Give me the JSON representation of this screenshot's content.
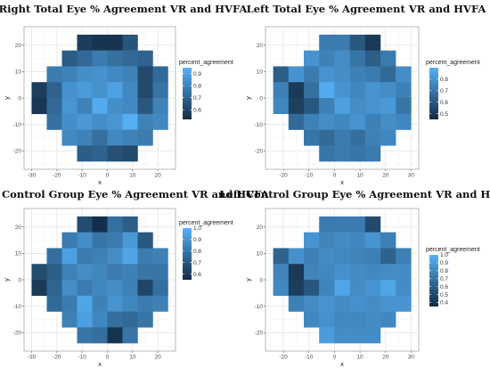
{
  "chart_data": [
    {
      "type": "heatmap",
      "title": "Right Total Eye % Agreement VR and HVFA",
      "xlabel": "x",
      "ylabel": "y",
      "xlim": [
        -33,
        27
      ],
      "ylim": [
        -27,
        27
      ],
      "xticks": [
        -30,
        -20,
        -10,
        0,
        10,
        20
      ],
      "yticks": [
        -20,
        -10,
        0,
        10,
        20
      ],
      "legend_title": "percent_agreement",
      "legend_range": [
        0.52,
        0.95
      ],
      "legend_ticks": [
        "0.9",
        "0.8",
        "0.7",
        "0.6"
      ],
      "legend_tick_values": [
        0.9,
        0.8,
        0.7,
        0.6
      ],
      "cell_w": 6,
      "cell_h": 6,
      "x_centers": [
        -27,
        -21,
        -15,
        -9,
        -3,
        3,
        9,
        15,
        21
      ],
      "y_centers": [
        21,
        15,
        9,
        3,
        -3,
        -9,
        -15,
        -21
      ],
      "values": [
        [
          null,
          null,
          null,
          0.58,
          0.55,
          0.55,
          0.65,
          null,
          null
        ],
        [
          null,
          null,
          0.68,
          0.72,
          0.78,
          0.74,
          0.72,
          0.7,
          null
        ],
        [
          null,
          0.78,
          0.8,
          0.84,
          0.85,
          0.82,
          0.8,
          0.62,
          0.72
        ],
        [
          0.58,
          0.7,
          0.85,
          0.88,
          0.85,
          0.9,
          0.82,
          0.62,
          0.75
        ],
        [
          0.56,
          0.72,
          0.86,
          0.8,
          0.93,
          0.84,
          0.82,
          0.66,
          0.8
        ],
        [
          null,
          0.74,
          0.84,
          0.87,
          0.84,
          0.86,
          0.94,
          0.8,
          0.82
        ],
        [
          null,
          null,
          0.82,
          0.8,
          0.74,
          0.82,
          0.8,
          0.78,
          null
        ],
        [
          null,
          null,
          null,
          0.68,
          0.7,
          0.64,
          0.62,
          null,
          null
        ]
      ]
    },
    {
      "type": "heatmap",
      "title": "Left Total Eye % Agreement VR and HVFA",
      "xlabel": "x",
      "ylabel": "y",
      "xlim": [
        -27,
        33
      ],
      "ylim": [
        -27,
        27
      ],
      "xticks": [
        -20,
        -10,
        0,
        10,
        20,
        30
      ],
      "yticks": [
        -20,
        -10,
        0,
        10,
        20
      ],
      "legend_title": "percent_agreement",
      "legend_range": [
        0.45,
        0.9
      ],
      "legend_ticks": [
        "0.8",
        "0.7",
        "0.6",
        "0.5"
      ],
      "legend_tick_values": [
        0.8,
        0.7,
        0.6,
        0.5
      ],
      "cell_w": 6,
      "cell_h": 6,
      "x_centers": [
        -21,
        -15,
        -9,
        -3,
        3,
        9,
        15,
        21,
        27
      ],
      "y_centers": [
        21,
        15,
        9,
        3,
        -3,
        -9,
        -15,
        -21
      ],
      "values": [
        [
          null,
          null,
          null,
          0.72,
          0.72,
          0.6,
          0.5,
          null,
          null
        ],
        [
          null,
          null,
          0.8,
          0.74,
          0.78,
          0.7,
          0.62,
          0.72,
          null
        ],
        [
          0.62,
          0.8,
          0.72,
          0.8,
          0.78,
          0.74,
          0.72,
          0.66,
          0.78
        ],
        [
          0.74,
          0.5,
          0.68,
          0.88,
          0.8,
          0.76,
          0.8,
          0.78,
          0.74
        ],
        [
          0.76,
          0.52,
          0.6,
          0.74,
          0.84,
          0.78,
          0.8,
          0.82,
          0.7
        ],
        [
          null,
          0.66,
          0.74,
          0.78,
          0.76,
          0.8,
          0.74,
          0.78,
          0.76
        ],
        [
          null,
          null,
          0.7,
          0.66,
          0.72,
          0.68,
          0.74,
          0.76,
          null
        ],
        [
          null,
          null,
          null,
          0.7,
          0.72,
          0.7,
          0.72,
          null,
          null
        ]
      ]
    },
    {
      "type": "heatmap",
      "title": "Right Control Group Eye % Agreement VR and HVFA",
      "xlabel": "x",
      "ylabel": "y",
      "xlim": [
        -33,
        27
      ],
      "ylim": [
        -27,
        27
      ],
      "xticks": [
        -30,
        -20,
        -10,
        0,
        10,
        20
      ],
      "yticks": [
        -20,
        -10,
        0,
        10,
        20
      ],
      "legend_title": "percent_agreement",
      "legend_range": [
        0.55,
        1.0
      ],
      "legend_ticks": [
        "1.0",
        "0.9",
        "0.8",
        "0.7",
        "0.6"
      ],
      "legend_tick_values": [
        1.0,
        0.9,
        0.8,
        0.7,
        0.6
      ],
      "cell_w": 6,
      "cell_h": 6,
      "x_centers": [
        -27,
        -21,
        -15,
        -9,
        -3,
        3,
        9,
        15,
        21
      ],
      "y_centers": [
        21,
        15,
        9,
        3,
        -3,
        -9,
        -15,
        -21
      ],
      "values": [
        [
          null,
          null,
          null,
          0.66,
          0.56,
          0.78,
          0.72,
          null,
          null
        ],
        [
          null,
          null,
          0.82,
          0.88,
          0.8,
          0.82,
          0.92,
          0.7,
          null
        ],
        [
          null,
          0.78,
          0.94,
          0.82,
          0.84,
          0.88,
          0.96,
          0.82,
          0.84
        ],
        [
          0.66,
          0.72,
          0.84,
          0.88,
          0.86,
          0.82,
          0.84,
          0.8,
          0.8
        ],
        [
          0.6,
          0.74,
          0.88,
          0.82,
          0.86,
          0.88,
          0.84,
          0.64,
          0.78
        ],
        [
          null,
          0.76,
          0.82,
          0.96,
          0.84,
          0.9,
          0.86,
          0.82,
          0.84
        ],
        [
          null,
          null,
          0.84,
          0.94,
          0.86,
          0.78,
          0.76,
          0.8,
          null
        ],
        [
          null,
          null,
          null,
          0.8,
          0.78,
          0.58,
          0.8,
          null,
          null
        ]
      ]
    },
    {
      "type": "heatmap",
      "title": "Left Control Group Eye % Agreement VR and HVFA",
      "xlabel": "x",
      "ylabel": "y",
      "xlim": [
        -27,
        33
      ],
      "ylim": [
        -27,
        27
      ],
      "xticks": [
        -20,
        -10,
        0,
        10,
        20,
        30
      ],
      "yticks": [
        -20,
        -10,
        0,
        10,
        20
      ],
      "legend_title": "percent_agreement",
      "legend_range": [
        0.35,
        1.0
      ],
      "legend_ticks": [
        "1.0",
        "0.9",
        "0.8",
        "0.7",
        "0.6",
        "0.5",
        "0.4"
      ],
      "legend_tick_values": [
        1.0,
        0.9,
        0.8,
        0.7,
        0.6,
        0.5,
        0.4
      ],
      "cell_w": 6,
      "cell_h": 6,
      "x_centers": [
        -21,
        -15,
        -9,
        -3,
        3,
        9,
        15,
        21,
        27
      ],
      "y_centers": [
        21,
        15,
        9,
        3,
        -3,
        -9,
        -15,
        -21
      ],
      "values": [
        [
          null,
          null,
          null,
          0.74,
          0.74,
          0.74,
          0.5,
          null,
          null
        ],
        [
          null,
          null,
          0.86,
          0.78,
          0.82,
          0.8,
          0.86,
          0.76,
          null
        ],
        [
          0.62,
          0.84,
          0.76,
          0.82,
          0.8,
          0.78,
          0.76,
          0.62,
          0.76
        ],
        [
          0.78,
          0.42,
          0.78,
          0.8,
          0.84,
          0.82,
          0.8,
          0.82,
          0.82
        ],
        [
          0.8,
          0.44,
          0.56,
          0.78,
          0.94,
          0.82,
          0.86,
          0.94,
          0.82
        ],
        [
          null,
          0.76,
          0.82,
          0.86,
          0.82,
          0.84,
          0.82,
          0.86,
          0.86
        ],
        [
          null,
          null,
          0.8,
          0.84,
          0.8,
          0.8,
          0.82,
          0.8,
          null
        ],
        [
          null,
          null,
          null,
          0.9,
          0.82,
          0.82,
          0.82,
          null,
          null
        ]
      ]
    }
  ]
}
